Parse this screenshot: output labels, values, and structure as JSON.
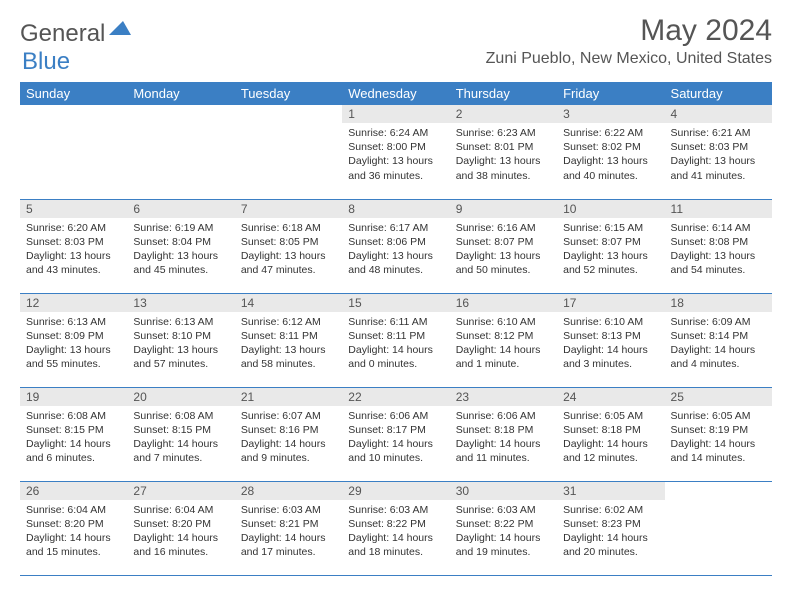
{
  "logo": {
    "general": "General",
    "blue": "Blue",
    "icon_color": "#3b7fc4"
  },
  "title": {
    "month_year": "May 2024",
    "location": "Zuni Pueblo, New Mexico, United States"
  },
  "colors": {
    "header_bg": "#3b7fc4",
    "header_text": "#ffffff",
    "daynum_bg": "#e9e9e9",
    "border": "#3b7fc4",
    "text": "#333333"
  },
  "day_headers": [
    "Sunday",
    "Monday",
    "Tuesday",
    "Wednesday",
    "Thursday",
    "Friday",
    "Saturday"
  ],
  "weeks": [
    [
      null,
      null,
      null,
      {
        "n": "1",
        "sr": "6:24 AM",
        "ss": "8:00 PM",
        "dl": "13 hours and 36 minutes."
      },
      {
        "n": "2",
        "sr": "6:23 AM",
        "ss": "8:01 PM",
        "dl": "13 hours and 38 minutes."
      },
      {
        "n": "3",
        "sr": "6:22 AM",
        "ss": "8:02 PM",
        "dl": "13 hours and 40 minutes."
      },
      {
        "n": "4",
        "sr": "6:21 AM",
        "ss": "8:03 PM",
        "dl": "13 hours and 41 minutes."
      }
    ],
    [
      {
        "n": "5",
        "sr": "6:20 AM",
        "ss": "8:03 PM",
        "dl": "13 hours and 43 minutes."
      },
      {
        "n": "6",
        "sr": "6:19 AM",
        "ss": "8:04 PM",
        "dl": "13 hours and 45 minutes."
      },
      {
        "n": "7",
        "sr": "6:18 AM",
        "ss": "8:05 PM",
        "dl": "13 hours and 47 minutes."
      },
      {
        "n": "8",
        "sr": "6:17 AM",
        "ss": "8:06 PM",
        "dl": "13 hours and 48 minutes."
      },
      {
        "n": "9",
        "sr": "6:16 AM",
        "ss": "8:07 PM",
        "dl": "13 hours and 50 minutes."
      },
      {
        "n": "10",
        "sr": "6:15 AM",
        "ss": "8:07 PM",
        "dl": "13 hours and 52 minutes."
      },
      {
        "n": "11",
        "sr": "6:14 AM",
        "ss": "8:08 PM",
        "dl": "13 hours and 54 minutes."
      }
    ],
    [
      {
        "n": "12",
        "sr": "6:13 AM",
        "ss": "8:09 PM",
        "dl": "13 hours and 55 minutes."
      },
      {
        "n": "13",
        "sr": "6:13 AM",
        "ss": "8:10 PM",
        "dl": "13 hours and 57 minutes."
      },
      {
        "n": "14",
        "sr": "6:12 AM",
        "ss": "8:11 PM",
        "dl": "13 hours and 58 minutes."
      },
      {
        "n": "15",
        "sr": "6:11 AM",
        "ss": "8:11 PM",
        "dl": "14 hours and 0 minutes."
      },
      {
        "n": "16",
        "sr": "6:10 AM",
        "ss": "8:12 PM",
        "dl": "14 hours and 1 minute."
      },
      {
        "n": "17",
        "sr": "6:10 AM",
        "ss": "8:13 PM",
        "dl": "14 hours and 3 minutes."
      },
      {
        "n": "18",
        "sr": "6:09 AM",
        "ss": "8:14 PM",
        "dl": "14 hours and 4 minutes."
      }
    ],
    [
      {
        "n": "19",
        "sr": "6:08 AM",
        "ss": "8:15 PM",
        "dl": "14 hours and 6 minutes."
      },
      {
        "n": "20",
        "sr": "6:08 AM",
        "ss": "8:15 PM",
        "dl": "14 hours and 7 minutes."
      },
      {
        "n": "21",
        "sr": "6:07 AM",
        "ss": "8:16 PM",
        "dl": "14 hours and 9 minutes."
      },
      {
        "n": "22",
        "sr": "6:06 AM",
        "ss": "8:17 PM",
        "dl": "14 hours and 10 minutes."
      },
      {
        "n": "23",
        "sr": "6:06 AM",
        "ss": "8:18 PM",
        "dl": "14 hours and 11 minutes."
      },
      {
        "n": "24",
        "sr": "6:05 AM",
        "ss": "8:18 PM",
        "dl": "14 hours and 12 minutes."
      },
      {
        "n": "25",
        "sr": "6:05 AM",
        "ss": "8:19 PM",
        "dl": "14 hours and 14 minutes."
      }
    ],
    [
      {
        "n": "26",
        "sr": "6:04 AM",
        "ss": "8:20 PM",
        "dl": "14 hours and 15 minutes."
      },
      {
        "n": "27",
        "sr": "6:04 AM",
        "ss": "8:20 PM",
        "dl": "14 hours and 16 minutes."
      },
      {
        "n": "28",
        "sr": "6:03 AM",
        "ss": "8:21 PM",
        "dl": "14 hours and 17 minutes."
      },
      {
        "n": "29",
        "sr": "6:03 AM",
        "ss": "8:22 PM",
        "dl": "14 hours and 18 minutes."
      },
      {
        "n": "30",
        "sr": "6:03 AM",
        "ss": "8:22 PM",
        "dl": "14 hours and 19 minutes."
      },
      {
        "n": "31",
        "sr": "6:02 AM",
        "ss": "8:23 PM",
        "dl": "14 hours and 20 minutes."
      },
      null
    ]
  ],
  "labels": {
    "sunrise": "Sunrise:",
    "sunset": "Sunset:",
    "daylight": "Daylight:"
  }
}
